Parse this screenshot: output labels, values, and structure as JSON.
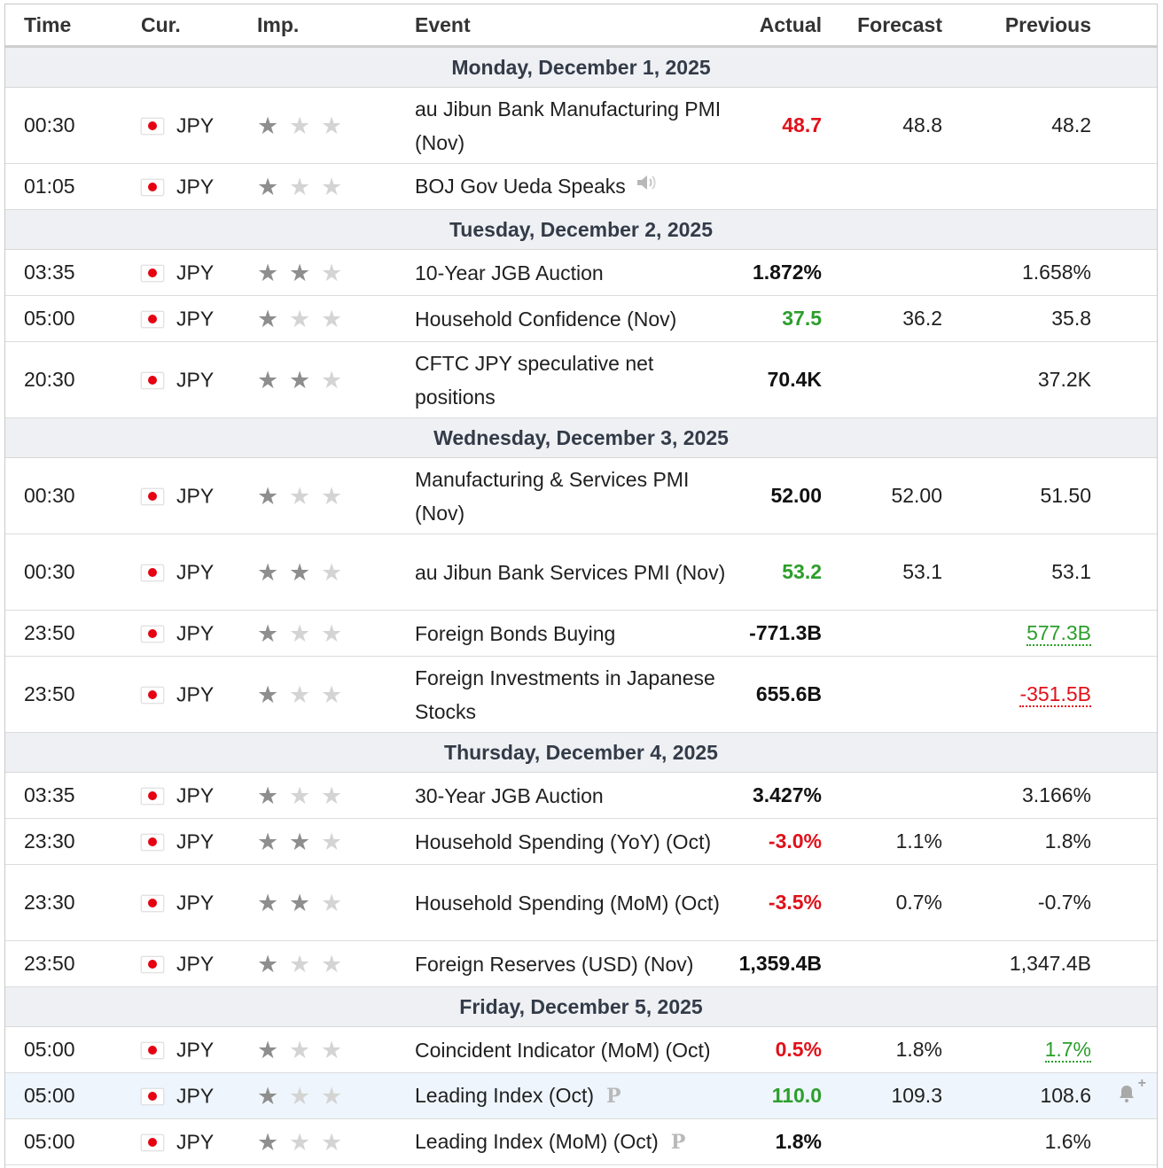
{
  "columns": {
    "time": "Time",
    "currency": "Cur.",
    "importance": "Imp.",
    "event": "Event",
    "actual": "Actual",
    "forecast": "Forecast",
    "previous": "Previous"
  },
  "colors": {
    "red": "#e0111a",
    "green": "#2c9e2c",
    "black": "#111111"
  },
  "days": [
    {
      "label": "Monday, December 1, 2025",
      "events": [
        {
          "time": "00:30",
          "currency": "JPY",
          "importance": 1,
          "event": "au Jibun Bank Manufacturing PMI (Nov)",
          "actual": "48.7",
          "actual_color": "red",
          "forecast": "48.8",
          "previous": "48.2"
        },
        {
          "time": "01:05",
          "currency": "JPY",
          "importance": 1,
          "event": "BOJ Gov Ueda Speaks",
          "icon": "speaker-icon",
          "actual": "",
          "forecast": "",
          "previous": ""
        }
      ]
    },
    {
      "label": "Tuesday, December 2, 2025",
      "events": [
        {
          "time": "03:35",
          "currency": "JPY",
          "importance": 2,
          "event": "10-Year JGB Auction",
          "actual": "1.872%",
          "actual_color": "black",
          "forecast": "",
          "previous": "1.658%"
        },
        {
          "time": "05:00",
          "currency": "JPY",
          "importance": 1,
          "event": "Household Confidence (Nov)",
          "actual": "37.5",
          "actual_color": "green",
          "forecast": "36.2",
          "previous": "35.8"
        },
        {
          "time": "20:30",
          "currency": "JPY",
          "importance": 2,
          "event": "CFTC JPY speculative net positions",
          "actual": "70.4K",
          "actual_color": "black",
          "forecast": "",
          "previous": "37.2K"
        }
      ]
    },
    {
      "label": "Wednesday, December 3, 2025",
      "events": [
        {
          "time": "00:30",
          "currency": "JPY",
          "importance": 1,
          "event": "Manufacturing & Services PMI (Nov)",
          "actual": "52.00",
          "actual_color": "black",
          "forecast": "52.00",
          "previous": "51.50"
        },
        {
          "time": "00:30",
          "currency": "JPY",
          "importance": 2,
          "event": "au Jibun Bank Services PMI (Nov)",
          "actual": "53.2",
          "actual_color": "green",
          "forecast": "53.1",
          "previous": "53.1"
        },
        {
          "time": "23:50",
          "currency": "JPY",
          "importance": 1,
          "event": "Foreign Bonds Buying",
          "actual": "-771.3B",
          "actual_color": "black",
          "forecast": "",
          "previous": "577.3B",
          "previous_color": "green",
          "previous_revised": true
        },
        {
          "time": "23:50",
          "currency": "JPY",
          "importance": 1,
          "event": "Foreign Investments in Japanese Stocks",
          "actual": "655.6B",
          "actual_color": "black",
          "forecast": "",
          "previous": "-351.5B",
          "previous_color": "red",
          "previous_revised": true
        }
      ]
    },
    {
      "label": "Thursday, December 4, 2025",
      "events": [
        {
          "time": "03:35",
          "currency": "JPY",
          "importance": 1,
          "event": "30-Year JGB Auction",
          "actual": "3.427%",
          "actual_color": "black",
          "forecast": "",
          "previous": "3.166%"
        },
        {
          "time": "23:30",
          "currency": "JPY",
          "importance": 2,
          "event": "Household Spending (YoY) (Oct)",
          "actual": "-3.0%",
          "actual_color": "red",
          "forecast": "1.1%",
          "previous": "1.8%"
        },
        {
          "time": "23:30",
          "currency": "JPY",
          "importance": 2,
          "event": "Household Spending (MoM) (Oct)",
          "actual": "-3.5%",
          "actual_color": "red",
          "forecast": "0.7%",
          "previous": "-0.7%"
        },
        {
          "time": "23:50",
          "currency": "JPY",
          "importance": 1,
          "event": "Foreign Reserves (USD) (Nov)",
          "actual": "1,359.4B",
          "actual_color": "black",
          "forecast": "",
          "previous": "1,347.4B"
        }
      ]
    },
    {
      "label": "Friday, December 5, 2025",
      "events": [
        {
          "time": "05:00",
          "currency": "JPY",
          "importance": 1,
          "event": "Coincident Indicator (MoM) (Oct)",
          "actual": "0.5%",
          "actual_color": "red",
          "forecast": "1.8%",
          "previous": "1.7%",
          "previous_color": "green",
          "previous_revised": true
        },
        {
          "time": "05:00",
          "currency": "JPY",
          "importance": 1,
          "event": "Leading Index (Oct)",
          "icon": "preliminary-icon",
          "actual": "110.0",
          "actual_color": "green",
          "forecast": "109.3",
          "previous": "108.6",
          "highlighted": true,
          "alert": true
        },
        {
          "time": "05:00",
          "currency": "JPY",
          "importance": 1,
          "event": "Leading Index (MoM) (Oct)",
          "icon": "preliminary-icon",
          "actual": "1.8%",
          "actual_color": "black",
          "forecast": "",
          "previous": "1.6%"
        }
      ]
    }
  ]
}
